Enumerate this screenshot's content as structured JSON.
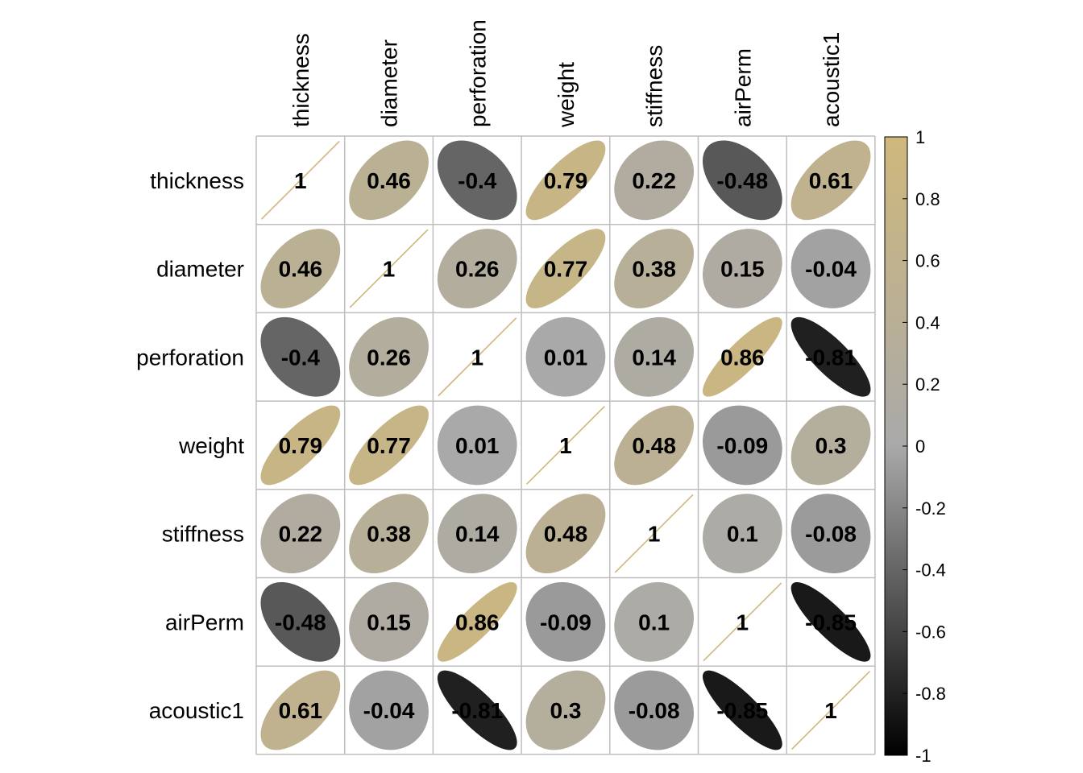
{
  "chart_data": {
    "type": "heatmap",
    "title": "",
    "variables": [
      "thickness",
      "diameter",
      "perforation",
      "weight",
      "stiffness",
      "airPerm",
      "acoustic1"
    ],
    "matrix": [
      [
        1,
        0.46,
        -0.4,
        0.79,
        0.22,
        -0.48,
        0.61
      ],
      [
        0.46,
        1,
        0.26,
        0.77,
        0.38,
        0.15,
        -0.04
      ],
      [
        -0.4,
        0.26,
        1,
        0.01,
        0.14,
        0.86,
        -0.81
      ],
      [
        0.79,
        0.77,
        0.01,
        1,
        0.48,
        -0.09,
        0.3
      ],
      [
        0.22,
        0.38,
        0.14,
        0.48,
        1,
        0.1,
        -0.08
      ],
      [
        -0.48,
        0.15,
        0.86,
        -0.09,
        0.1,
        1,
        -0.85
      ],
      [
        0.61,
        -0.04,
        -0.81,
        0.3,
        -0.08,
        -0.85,
        1
      ]
    ],
    "labels": [
      [
        "1",
        "0.46",
        "-0.4",
        "0.79",
        "0.22",
        "-0.48",
        "0.61"
      ],
      [
        "0.46",
        "1",
        "0.26",
        "0.77",
        "0.38",
        "0.15",
        "-0.04"
      ],
      [
        "-0.4",
        "0.26",
        "1",
        "0.01",
        "0.14",
        "0.86",
        "-0.81"
      ],
      [
        "0.79",
        "0.77",
        "0.01",
        "1",
        "0.48",
        "-0.09",
        "0.3"
      ],
      [
        "0.22",
        "0.38",
        "0.14",
        "0.48",
        "1",
        "0.1",
        "-0.08"
      ],
      [
        "-0.48",
        "0.15",
        "0.86",
        "-0.09",
        "0.1",
        "1",
        "-0.85"
      ],
      [
        "0.61",
        "-0.04",
        "-0.81",
        "0.3",
        "-0.08",
        "-0.85",
        "1"
      ]
    ],
    "color_scale": {
      "range": [
        -1,
        1
      ],
      "stops": [
        {
          "value": -1,
          "color": "#000000"
        },
        {
          "value": 0,
          "color": "#A9A9A9"
        },
        {
          "value": 1,
          "color": "#CFB87C"
        }
      ],
      "ticks": [
        1,
        0.8,
        0.6,
        0.4,
        0.2,
        0,
        -0.2,
        -0.4,
        -0.6,
        -0.8,
        -1
      ],
      "tick_labels": [
        "1",
        "0.8",
        "0.6",
        "0.4",
        "0.2",
        "0",
        "-0.2",
        "-0.4",
        "-0.6",
        "-0.8",
        "-1"
      ]
    },
    "legend_position": "right",
    "grid_color": "#BEBEBE",
    "shape": "ellipse"
  }
}
